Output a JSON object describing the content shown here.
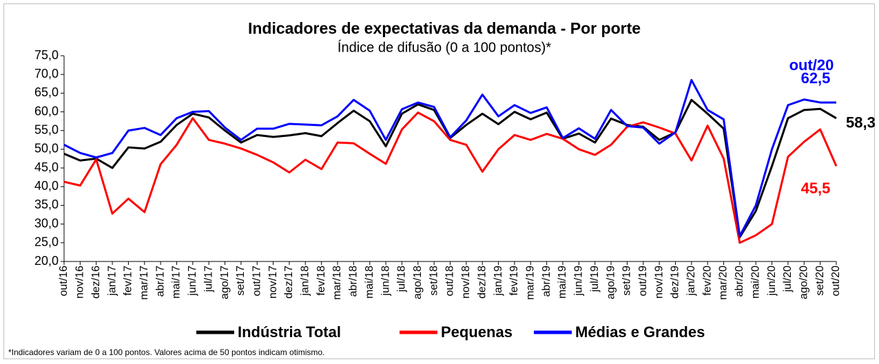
{
  "chart_data": {
    "type": "line",
    "title": "Indicadores de expectativas da demanda - Por porte",
    "subtitle": "Índice de difusão (0 a 100 pontos)*",
    "footnote": "*Indicadores variam de 0 a 100 pontos. Valores acima de 50 pontos indicam otimismo.",
    "annotation": "out/20",
    "categories": [
      "out/16",
      "nov/16",
      "dez/16",
      "jan/17",
      "fev/17",
      "mar/17",
      "abr/17",
      "mai/17",
      "jun/17",
      "jul/17",
      "ago/17",
      "set/17",
      "out/17",
      "nov/17",
      "dez/17",
      "jan/18",
      "fev/18",
      "mar/18",
      "abr/18",
      "mai/18",
      "jun/18",
      "jul/18",
      "ago/18",
      "set/18",
      "out/18",
      "nov/18",
      "dez/18",
      "jan/19",
      "fev/19",
      "mar/19",
      "abr/19",
      "mai/19",
      "jun/19",
      "jul/19",
      "ago/19",
      "set/19",
      "out/19",
      "nov/19",
      "dez/19",
      "jan/20",
      "fev/20",
      "mar/20",
      "abr/20",
      "mai/20",
      "jun/20",
      "jul/20",
      "ago/20",
      "set/20",
      "out/20"
    ],
    "ylim": [
      20,
      75
    ],
    "yticks": [
      {
        "value": 20,
        "label": "20,0"
      },
      {
        "value": 25,
        "label": "25,0"
      },
      {
        "value": 30,
        "label": "30,0"
      },
      {
        "value": 35,
        "label": "35,0"
      },
      {
        "value": 40,
        "label": "40,0"
      },
      {
        "value": 45,
        "label": "45,0"
      },
      {
        "value": 50,
        "label": "50,0"
      },
      {
        "value": 55,
        "label": "55,0"
      },
      {
        "value": 60,
        "label": "60,0"
      },
      {
        "value": 65,
        "label": "65,0"
      },
      {
        "value": 70,
        "label": "70,0"
      },
      {
        "value": 75,
        "label": "75,0"
      }
    ],
    "series": [
      {
        "name": "Indústria Total",
        "color": "#000000",
        "values": [
          48.8,
          47,
          47.5,
          45,
          50.5,
          50.2,
          52,
          56.5,
          59.5,
          58.5,
          55,
          51.8,
          53.8,
          53.3,
          53.7,
          54.3,
          53.5,
          57,
          60.3,
          57.5,
          50.8,
          59.5,
          62,
          60.5,
          53,
          56.5,
          59.5,
          56.7,
          60,
          58,
          59.8,
          52.8,
          54.2,
          51.8,
          58.2,
          56.5,
          56,
          52.5,
          54.5,
          63.2,
          59.5,
          55.5,
          26.5,
          33.5,
          45.5,
          58.3,
          60.5,
          60.8,
          58.3
        ],
        "value_labels": [
          null,
          null,
          null,
          null,
          null,
          null,
          null,
          null,
          null,
          null,
          null,
          null,
          null,
          null,
          null,
          null,
          null,
          null,
          null,
          null,
          null,
          null,
          null,
          null,
          null,
          null,
          null,
          null,
          null,
          null,
          null,
          null,
          null,
          null,
          null,
          null,
          null,
          null,
          null,
          null,
          null,
          null,
          null,
          null,
          null,
          null,
          null,
          null,
          "58,3"
        ]
      },
      {
        "name": "Pequenas",
        "color": "#ff0000",
        "values": [
          41.3,
          40.3,
          47.3,
          32.8,
          36.8,
          33.2,
          46,
          51.2,
          58.3,
          52.5,
          51.5,
          50.2,
          48.5,
          46.5,
          43.8,
          47.2,
          44.7,
          51.8,
          51.6,
          48.8,
          46.1,
          55.3,
          59.8,
          57.5,
          52.5,
          51.2,
          44,
          50,
          53.8,
          52.5,
          54.1,
          52.8,
          50,
          48.5,
          51.2,
          56,
          57.2,
          55.8,
          54.2,
          47,
          56.3,
          47.5,
          25,
          27,
          30,
          48,
          52,
          55.3,
          45.5
        ],
        "value_labels": [
          null,
          null,
          null,
          null,
          null,
          null,
          null,
          null,
          null,
          null,
          null,
          null,
          null,
          null,
          null,
          null,
          null,
          null,
          null,
          null,
          null,
          null,
          null,
          null,
          null,
          null,
          null,
          null,
          null,
          null,
          null,
          null,
          null,
          null,
          null,
          null,
          null,
          null,
          null,
          null,
          null,
          null,
          null,
          null,
          null,
          null,
          null,
          null,
          "45,5"
        ]
      },
      {
        "name": "Médias e Grandes",
        "color": "#0000ff",
        "values": [
          51.2,
          49,
          47.8,
          49,
          55,
          55.7,
          53.8,
          58.3,
          60,
          60.2,
          55.8,
          52.5,
          55.5,
          55.5,
          56.8,
          56.6,
          56.4,
          58.8,
          63.2,
          60.3,
          52.5,
          60.7,
          62.5,
          61.3,
          53.2,
          57.7,
          64.6,
          58.8,
          61.8,
          59.7,
          61.2,
          53,
          55.6,
          52.8,
          60.5,
          56.2,
          55.8,
          51.5,
          54.5,
          68.5,
          60.5,
          58,
          26.8,
          35,
          50,
          61.8,
          63.3,
          62.5,
          62.5
        ],
        "value_labels": [
          null,
          null,
          null,
          null,
          null,
          null,
          null,
          null,
          null,
          null,
          null,
          null,
          null,
          null,
          null,
          null,
          null,
          null,
          null,
          null,
          null,
          null,
          null,
          null,
          null,
          null,
          null,
          null,
          null,
          null,
          null,
          null,
          null,
          null,
          null,
          null,
          null,
          null,
          null,
          null,
          null,
          null,
          null,
          null,
          null,
          null,
          null,
          null,
          "62,5"
        ]
      }
    ]
  }
}
